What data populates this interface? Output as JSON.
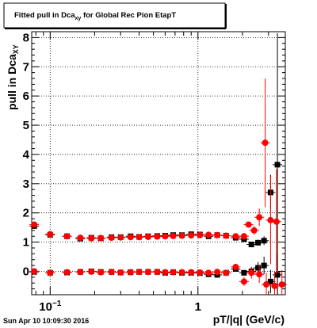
{
  "page": {
    "timestamp": "Sun Apr 10 10:09:30 2016"
  },
  "chart_data": {
    "type": "scatter",
    "title": "Fitted pull in Dca",
    "title_subscript": "xy",
    "title_suffix": " for Global Rec Pion EtapT",
    "xlabel": "pT/|q| (GeV/c)",
    "ylabel": "pull in Dca",
    "ylabel_subscript": "XY",
    "x_scale": "log",
    "xlim": [
      0.075,
      3.9
    ],
    "ylim": [
      -0.8,
      8.2
    ],
    "x_tick_labels": [
      {
        "value": 0.1,
        "base": "10",
        "exp": "−1"
      },
      {
        "value": 1,
        "base": "1",
        "exp": ""
      }
    ],
    "y_ticks": [
      0,
      1,
      2,
      3,
      4,
      5,
      6,
      7,
      8
    ],
    "grid": true,
    "legend": "none",
    "series": [
      {
        "color": "#000000",
        "marker": "square",
        "points": [
          {
            "x": 0.078,
            "y": 1.55,
            "e": 0.05
          },
          {
            "x": 0.1,
            "y": 1.25,
            "e": 0.05
          },
          {
            "x": 0.13,
            "y": 1.2,
            "e": 0.04
          },
          {
            "x": 0.16,
            "y": 1.12,
            "e": 0.03
          },
          {
            "x": 0.19,
            "y": 1.15,
            "e": 0.03
          },
          {
            "x": 0.22,
            "y": 1.13,
            "e": 0.03
          },
          {
            "x": 0.26,
            "y": 1.17,
            "e": 0.03
          },
          {
            "x": 0.3,
            "y": 1.17,
            "e": 0.03
          },
          {
            "x": 0.35,
            "y": 1.2,
            "e": 0.03
          },
          {
            "x": 0.4,
            "y": 1.18,
            "e": 0.03
          },
          {
            "x": 0.46,
            "y": 1.2,
            "e": 0.03
          },
          {
            "x": 0.53,
            "y": 1.21,
            "e": 0.03
          },
          {
            "x": 0.6,
            "y": 1.22,
            "e": 0.03
          },
          {
            "x": 0.68,
            "y": 1.24,
            "e": 0.03
          },
          {
            "x": 0.78,
            "y": 1.24,
            "e": 0.03
          },
          {
            "x": 0.9,
            "y": 1.27,
            "e": 0.03
          },
          {
            "x": 1.03,
            "y": 1.26,
            "e": 0.03
          },
          {
            "x": 1.18,
            "y": 1.2,
            "e": 0.04
          },
          {
            "x": 1.35,
            "y": 1.24,
            "e": 0.04
          },
          {
            "x": 1.55,
            "y": 1.22,
            "e": 0.04
          },
          {
            "x": 1.8,
            "y": 1.15,
            "e": 0.05
          },
          {
            "x": 2.05,
            "y": 1.1,
            "e": 0.05
          },
          {
            "x": 2.3,
            "y": 0.92,
            "e": 0.08
          },
          {
            "x": 2.55,
            "y": 0.98,
            "e": 0.1
          },
          {
            "x": 2.8,
            "y": 1.05,
            "e": 0.15
          },
          {
            "x": 3.1,
            "y": 2.7,
            "e": 0.6
          },
          {
            "x": 3.45,
            "y": 3.65,
            "e": 4.5
          },
          {
            "x": 0.078,
            "y": -0.02,
            "e": 0.04
          },
          {
            "x": 0.1,
            "y": -0.05,
            "e": 0.04
          },
          {
            "x": 0.13,
            "y": -0.04,
            "e": 0.04
          },
          {
            "x": 0.16,
            "y": -0.02,
            "e": 0.03
          },
          {
            "x": 0.19,
            "y": 0.0,
            "e": 0.03
          },
          {
            "x": 0.22,
            "y": -0.02,
            "e": 0.03
          },
          {
            "x": 0.26,
            "y": -0.02,
            "e": 0.03
          },
          {
            "x": 0.3,
            "y": -0.04,
            "e": 0.03
          },
          {
            "x": 0.35,
            "y": -0.03,
            "e": 0.03
          },
          {
            "x": 0.4,
            "y": -0.02,
            "e": 0.03
          },
          {
            "x": 0.46,
            "y": -0.02,
            "e": 0.03
          },
          {
            "x": 0.53,
            "y": -0.02,
            "e": 0.03
          },
          {
            "x": 0.6,
            "y": -0.05,
            "e": 0.03
          },
          {
            "x": 0.68,
            "y": -0.03,
            "e": 0.03
          },
          {
            "x": 0.78,
            "y": -0.05,
            "e": 0.03
          },
          {
            "x": 0.9,
            "y": -0.05,
            "e": 0.03
          },
          {
            "x": 1.03,
            "y": -0.06,
            "e": 0.04
          },
          {
            "x": 1.18,
            "y": -0.1,
            "e": 0.05
          },
          {
            "x": 1.35,
            "y": -0.12,
            "e": 0.05
          },
          {
            "x": 1.55,
            "y": -0.05,
            "e": 0.06
          },
          {
            "x": 1.8,
            "y": 0.08,
            "e": 0.08
          },
          {
            "x": 2.05,
            "y": -0.05,
            "e": 0.1
          },
          {
            "x": 2.3,
            "y": 0.0,
            "e": 0.15
          },
          {
            "x": 2.55,
            "y": 0.12,
            "e": 0.2
          },
          {
            "x": 2.8,
            "y": 0.2,
            "e": 0.3
          },
          {
            "x": 3.1,
            "y": -0.35,
            "e": 0.4
          },
          {
            "x": 3.45,
            "y": -0.12,
            "e": 0.7
          }
        ]
      },
      {
        "color": "#ff0000",
        "marker": "circle",
        "points": [
          {
            "x": 0.078,
            "y": 1.6,
            "e": 0.05
          },
          {
            "x": 0.1,
            "y": 1.27,
            "e": 0.05
          },
          {
            "x": 0.13,
            "y": 1.2,
            "e": 0.04
          },
          {
            "x": 0.16,
            "y": 1.15,
            "e": 0.03
          },
          {
            "x": 0.19,
            "y": 1.13,
            "e": 0.03
          },
          {
            "x": 0.22,
            "y": 1.14,
            "e": 0.03
          },
          {
            "x": 0.26,
            "y": 1.15,
            "e": 0.03
          },
          {
            "x": 0.3,
            "y": 1.16,
            "e": 0.03
          },
          {
            "x": 0.35,
            "y": 1.17,
            "e": 0.03
          },
          {
            "x": 0.4,
            "y": 1.17,
            "e": 0.03
          },
          {
            "x": 0.46,
            "y": 1.18,
            "e": 0.03
          },
          {
            "x": 0.53,
            "y": 1.19,
            "e": 0.03
          },
          {
            "x": 0.6,
            "y": 1.2,
            "e": 0.03
          },
          {
            "x": 0.68,
            "y": 1.21,
            "e": 0.03
          },
          {
            "x": 0.78,
            "y": 1.22,
            "e": 0.03
          },
          {
            "x": 0.9,
            "y": 1.23,
            "e": 0.03
          },
          {
            "x": 1.03,
            "y": 1.24,
            "e": 0.03
          },
          {
            "x": 1.18,
            "y": 1.25,
            "e": 0.04
          },
          {
            "x": 1.35,
            "y": 1.24,
            "e": 0.04
          },
          {
            "x": 1.55,
            "y": 1.22,
            "e": 0.04
          },
          {
            "x": 1.8,
            "y": 1.2,
            "e": 0.05
          },
          {
            "x": 2.05,
            "y": 1.2,
            "e": 0.06
          },
          {
            "x": 2.2,
            "y": 1.6,
            "e": 0.1
          },
          {
            "x": 2.4,
            "y": 1.4,
            "e": 0.15
          },
          {
            "x": 2.6,
            "y": 1.85,
            "e": 0.3
          },
          {
            "x": 2.85,
            "y": 4.4,
            "e": 2.2
          },
          {
            "x": 3.1,
            "y": 1.75,
            "e": 1.5
          },
          {
            "x": 3.4,
            "y": 1.7,
            "e": 1.8
          },
          {
            "x": 0.078,
            "y": 0.0,
            "e": 0.04
          },
          {
            "x": 0.1,
            "y": -0.05,
            "e": 0.04
          },
          {
            "x": 0.13,
            "y": -0.03,
            "e": 0.04
          },
          {
            "x": 0.16,
            "y": -0.02,
            "e": 0.03
          },
          {
            "x": 0.19,
            "y": -0.01,
            "e": 0.03
          },
          {
            "x": 0.22,
            "y": -0.03,
            "e": 0.03
          },
          {
            "x": 0.26,
            "y": -0.02,
            "e": 0.03
          },
          {
            "x": 0.3,
            "y": -0.04,
            "e": 0.03
          },
          {
            "x": 0.35,
            "y": -0.03,
            "e": 0.03
          },
          {
            "x": 0.4,
            "y": -0.02,
            "e": 0.03
          },
          {
            "x": 0.46,
            "y": -0.02,
            "e": 0.03
          },
          {
            "x": 0.53,
            "y": -0.02,
            "e": 0.03
          },
          {
            "x": 0.6,
            "y": -0.03,
            "e": 0.03
          },
          {
            "x": 0.68,
            "y": -0.03,
            "e": 0.03
          },
          {
            "x": 0.78,
            "y": -0.03,
            "e": 0.03
          },
          {
            "x": 0.9,
            "y": -0.03,
            "e": 0.03
          },
          {
            "x": 1.03,
            "y": -0.04,
            "e": 0.04
          },
          {
            "x": 1.18,
            "y": -0.05,
            "e": 0.05
          },
          {
            "x": 1.35,
            "y": -0.02,
            "e": 0.05
          },
          {
            "x": 1.55,
            "y": -0.05,
            "e": 0.06
          },
          {
            "x": 1.8,
            "y": 0.15,
            "e": 0.1
          },
          {
            "x": 2.05,
            "y": -0.35,
            "e": 0.15
          },
          {
            "x": 2.3,
            "y": -0.05,
            "e": 0.2
          },
          {
            "x": 2.6,
            "y": -0.1,
            "e": 0.3
          },
          {
            "x": 2.9,
            "y": -0.45,
            "e": 0.4
          },
          {
            "x": 3.3,
            "y": -0.5,
            "e": 0.5
          },
          {
            "x": 3.7,
            "y": -0.45,
            "e": 0.5
          }
        ]
      }
    ]
  }
}
